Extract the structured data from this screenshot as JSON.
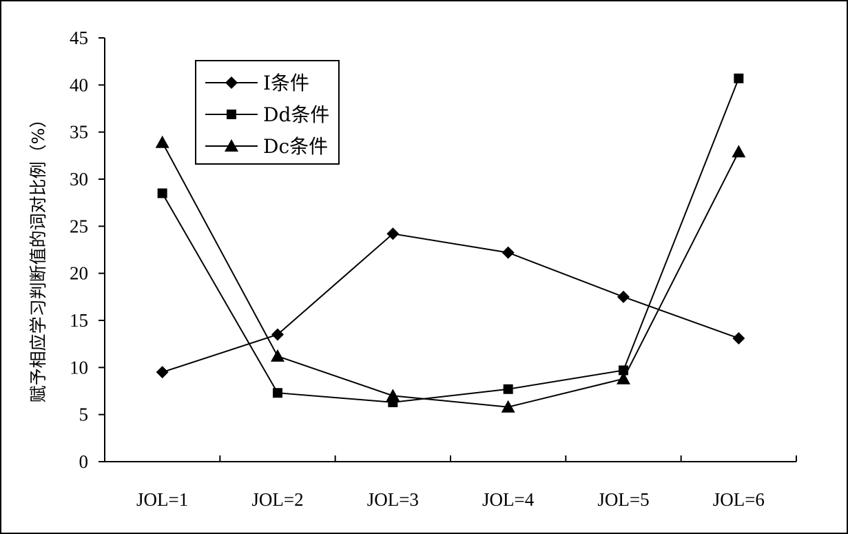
{
  "chart_data": {
    "type": "line",
    "title": "",
    "xlabel": "",
    "ylabel": "赋予相应学习判断值的词对比例（%）",
    "categories": [
      "JOL=1",
      "JOL=2",
      "JOL=3",
      "JOL=4",
      "JOL=5",
      "JOL=6"
    ],
    "ylim": [
      0,
      45
    ],
    "yticks": [
      0,
      5,
      10,
      15,
      20,
      25,
      30,
      35,
      40,
      45
    ],
    "grid": false,
    "legend_position": "top-left",
    "series": [
      {
        "name": "I条件",
        "marker": "diamond",
        "values": [
          9.5,
          13.5,
          24.2,
          22.2,
          17.5,
          13.1
        ]
      },
      {
        "name": "Dd条件",
        "marker": "square",
        "values": [
          28.5,
          7.3,
          6.3,
          7.7,
          9.7,
          40.7
        ]
      },
      {
        "name": "Dc条件",
        "marker": "triangle",
        "values": [
          33.9,
          11.2,
          7.0,
          5.8,
          8.8,
          32.9
        ]
      }
    ],
    "colors": {
      "line": "#000000",
      "marker": "#000000",
      "background": "#ffffff"
    }
  }
}
